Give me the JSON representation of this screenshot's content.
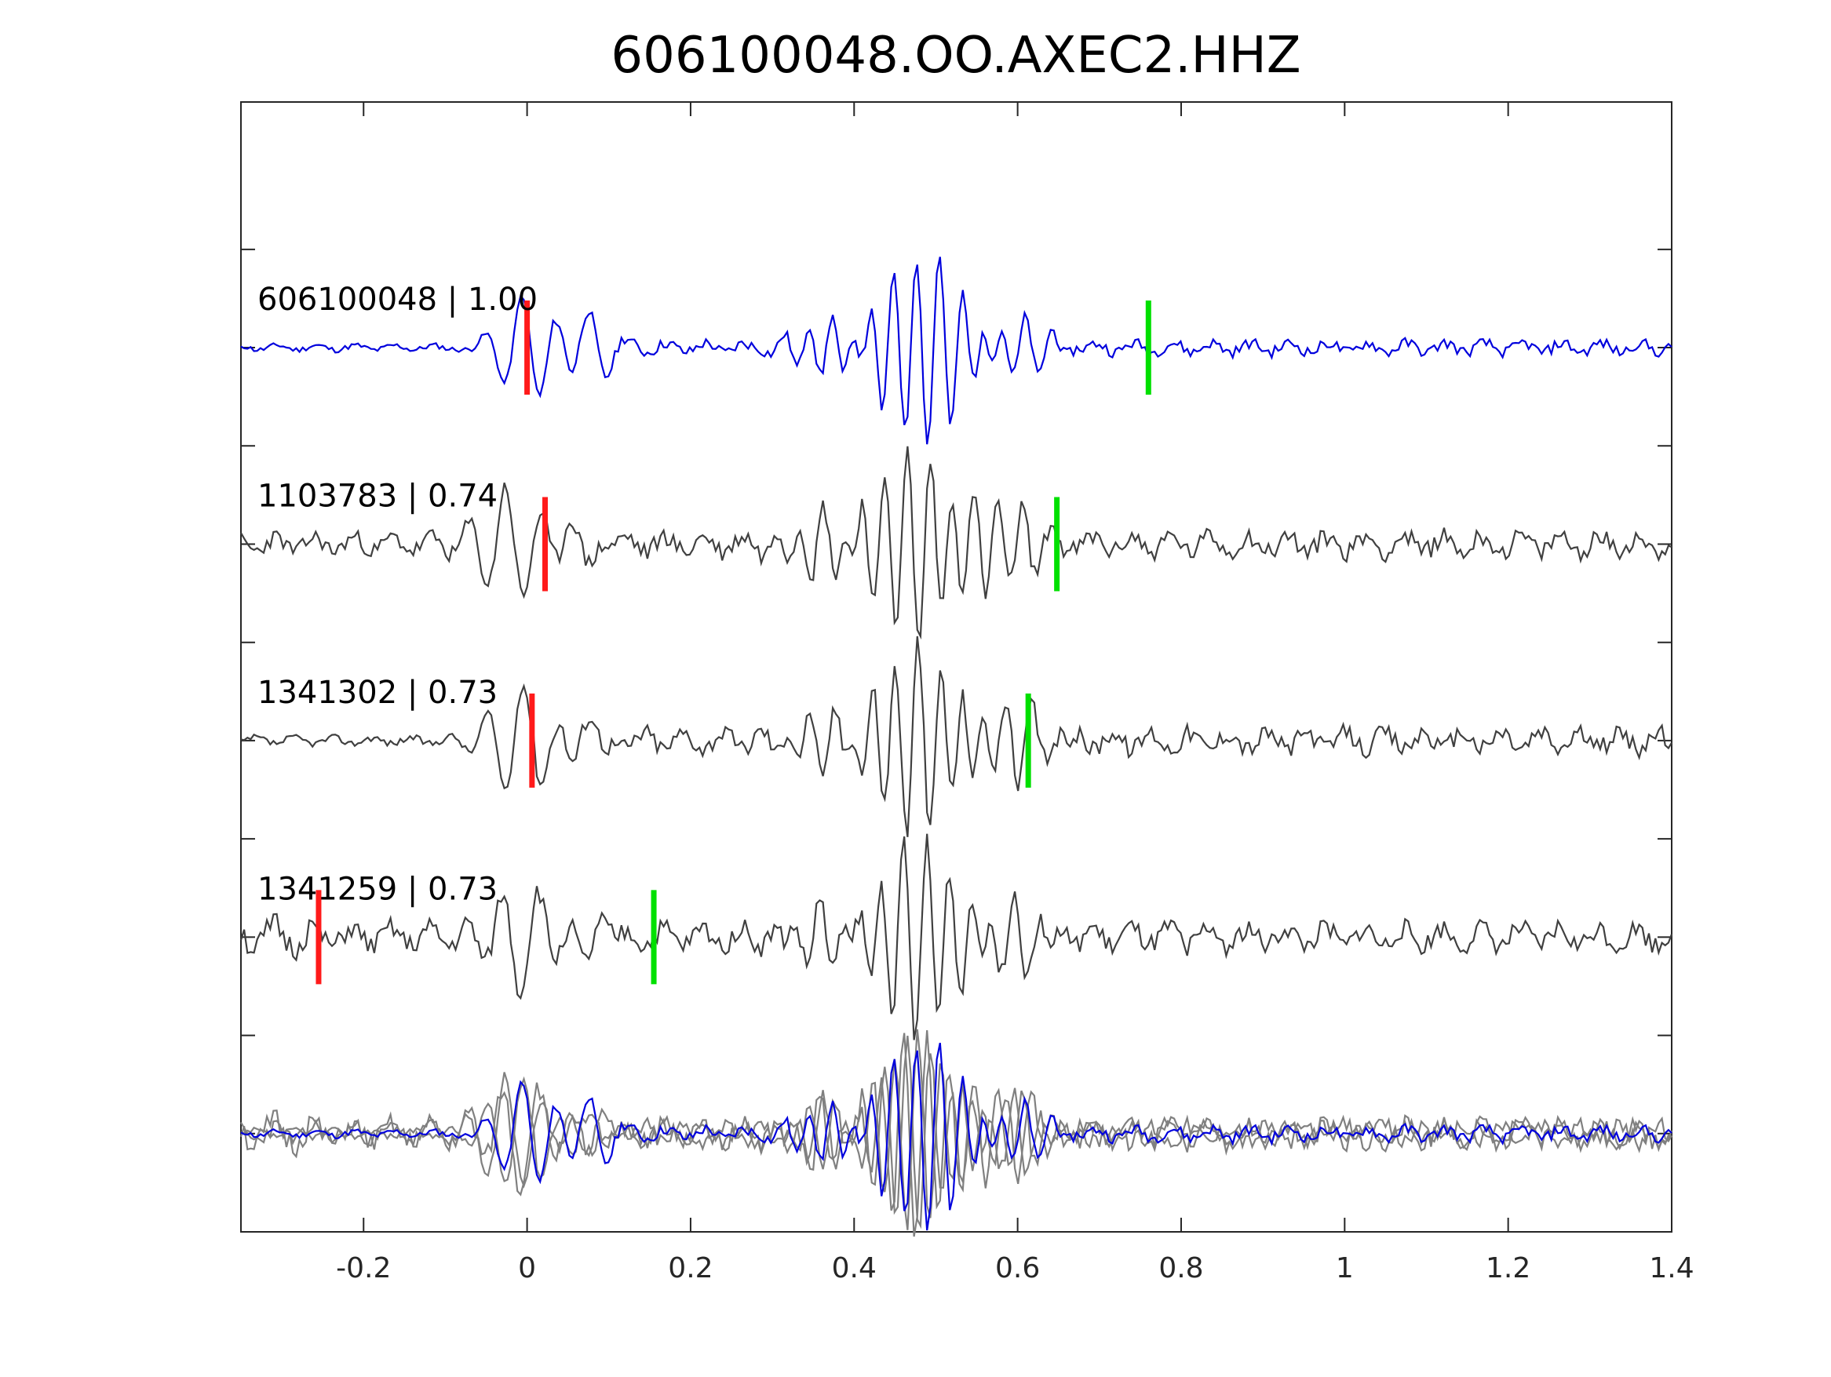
{
  "chart_data": {
    "type": "line",
    "title": "606100048.OO.AXEC2.HHZ",
    "xlabel": "",
    "ylabel": "",
    "xlim": [
      -0.35,
      1.4
    ],
    "x_ticks": [
      -0.2,
      0,
      0.2,
      0.4,
      0.6,
      0.8,
      1,
      1.2,
      1.4
    ],
    "x_tick_labels": [
      "-0.2",
      "0",
      "0.2",
      "0.4",
      "0.6",
      "0.8",
      "1",
      "1.2",
      "1.4"
    ],
    "y_tick_count": 11,
    "grid": false,
    "legend": "none",
    "colors": {
      "primary_trace": "#0000dd",
      "neighbor_trace": "#404040",
      "overlay_neighbor": "#808080",
      "p_pick": "#ff1a1a",
      "s_pick": "#00e000",
      "axes": "#262626"
    },
    "traces": [
      {
        "id": "606100048",
        "corr": "1.00",
        "label": "606100048 | 1.00",
        "color": "#0000dd",
        "offset": 4,
        "p_time": 0.0,
        "s_time": 0.76,
        "seed": 11,
        "dt_shift": 0.0,
        "pre_noise": 0.04,
        "post_noise": 0.08
      },
      {
        "id": "1103783",
        "corr": "0.74",
        "label": "1103783 | 0.74",
        "color": "#404040",
        "offset": 3,
        "p_time": 0.022,
        "s_time": 0.648,
        "seed": 23,
        "dt_shift": -0.02,
        "pre_noise": 0.12,
        "post_noise": 0.14
      },
      {
        "id": "1341302",
        "corr": "0.73",
        "label": "1341302 | 0.73",
        "color": "#404040",
        "offset": 2,
        "p_time": 0.006,
        "s_time": 0.613,
        "seed": 37,
        "dt_shift": -0.01,
        "pre_noise": 0.05,
        "post_noise": 0.14
      },
      {
        "id": "1341259",
        "corr": "0.73",
        "label": "1341259 | 0.73",
        "color": "#404040",
        "offset": 1,
        "p_time": -0.255,
        "s_time": 0.155,
        "seed": 51,
        "dt_shift": -0.005,
        "pre_noise": 0.2,
        "post_noise": 0.15
      }
    ],
    "overlay": {
      "offset": 0,
      "description": "all traces superposed; neighbors gray, primary blue on top"
    }
  }
}
